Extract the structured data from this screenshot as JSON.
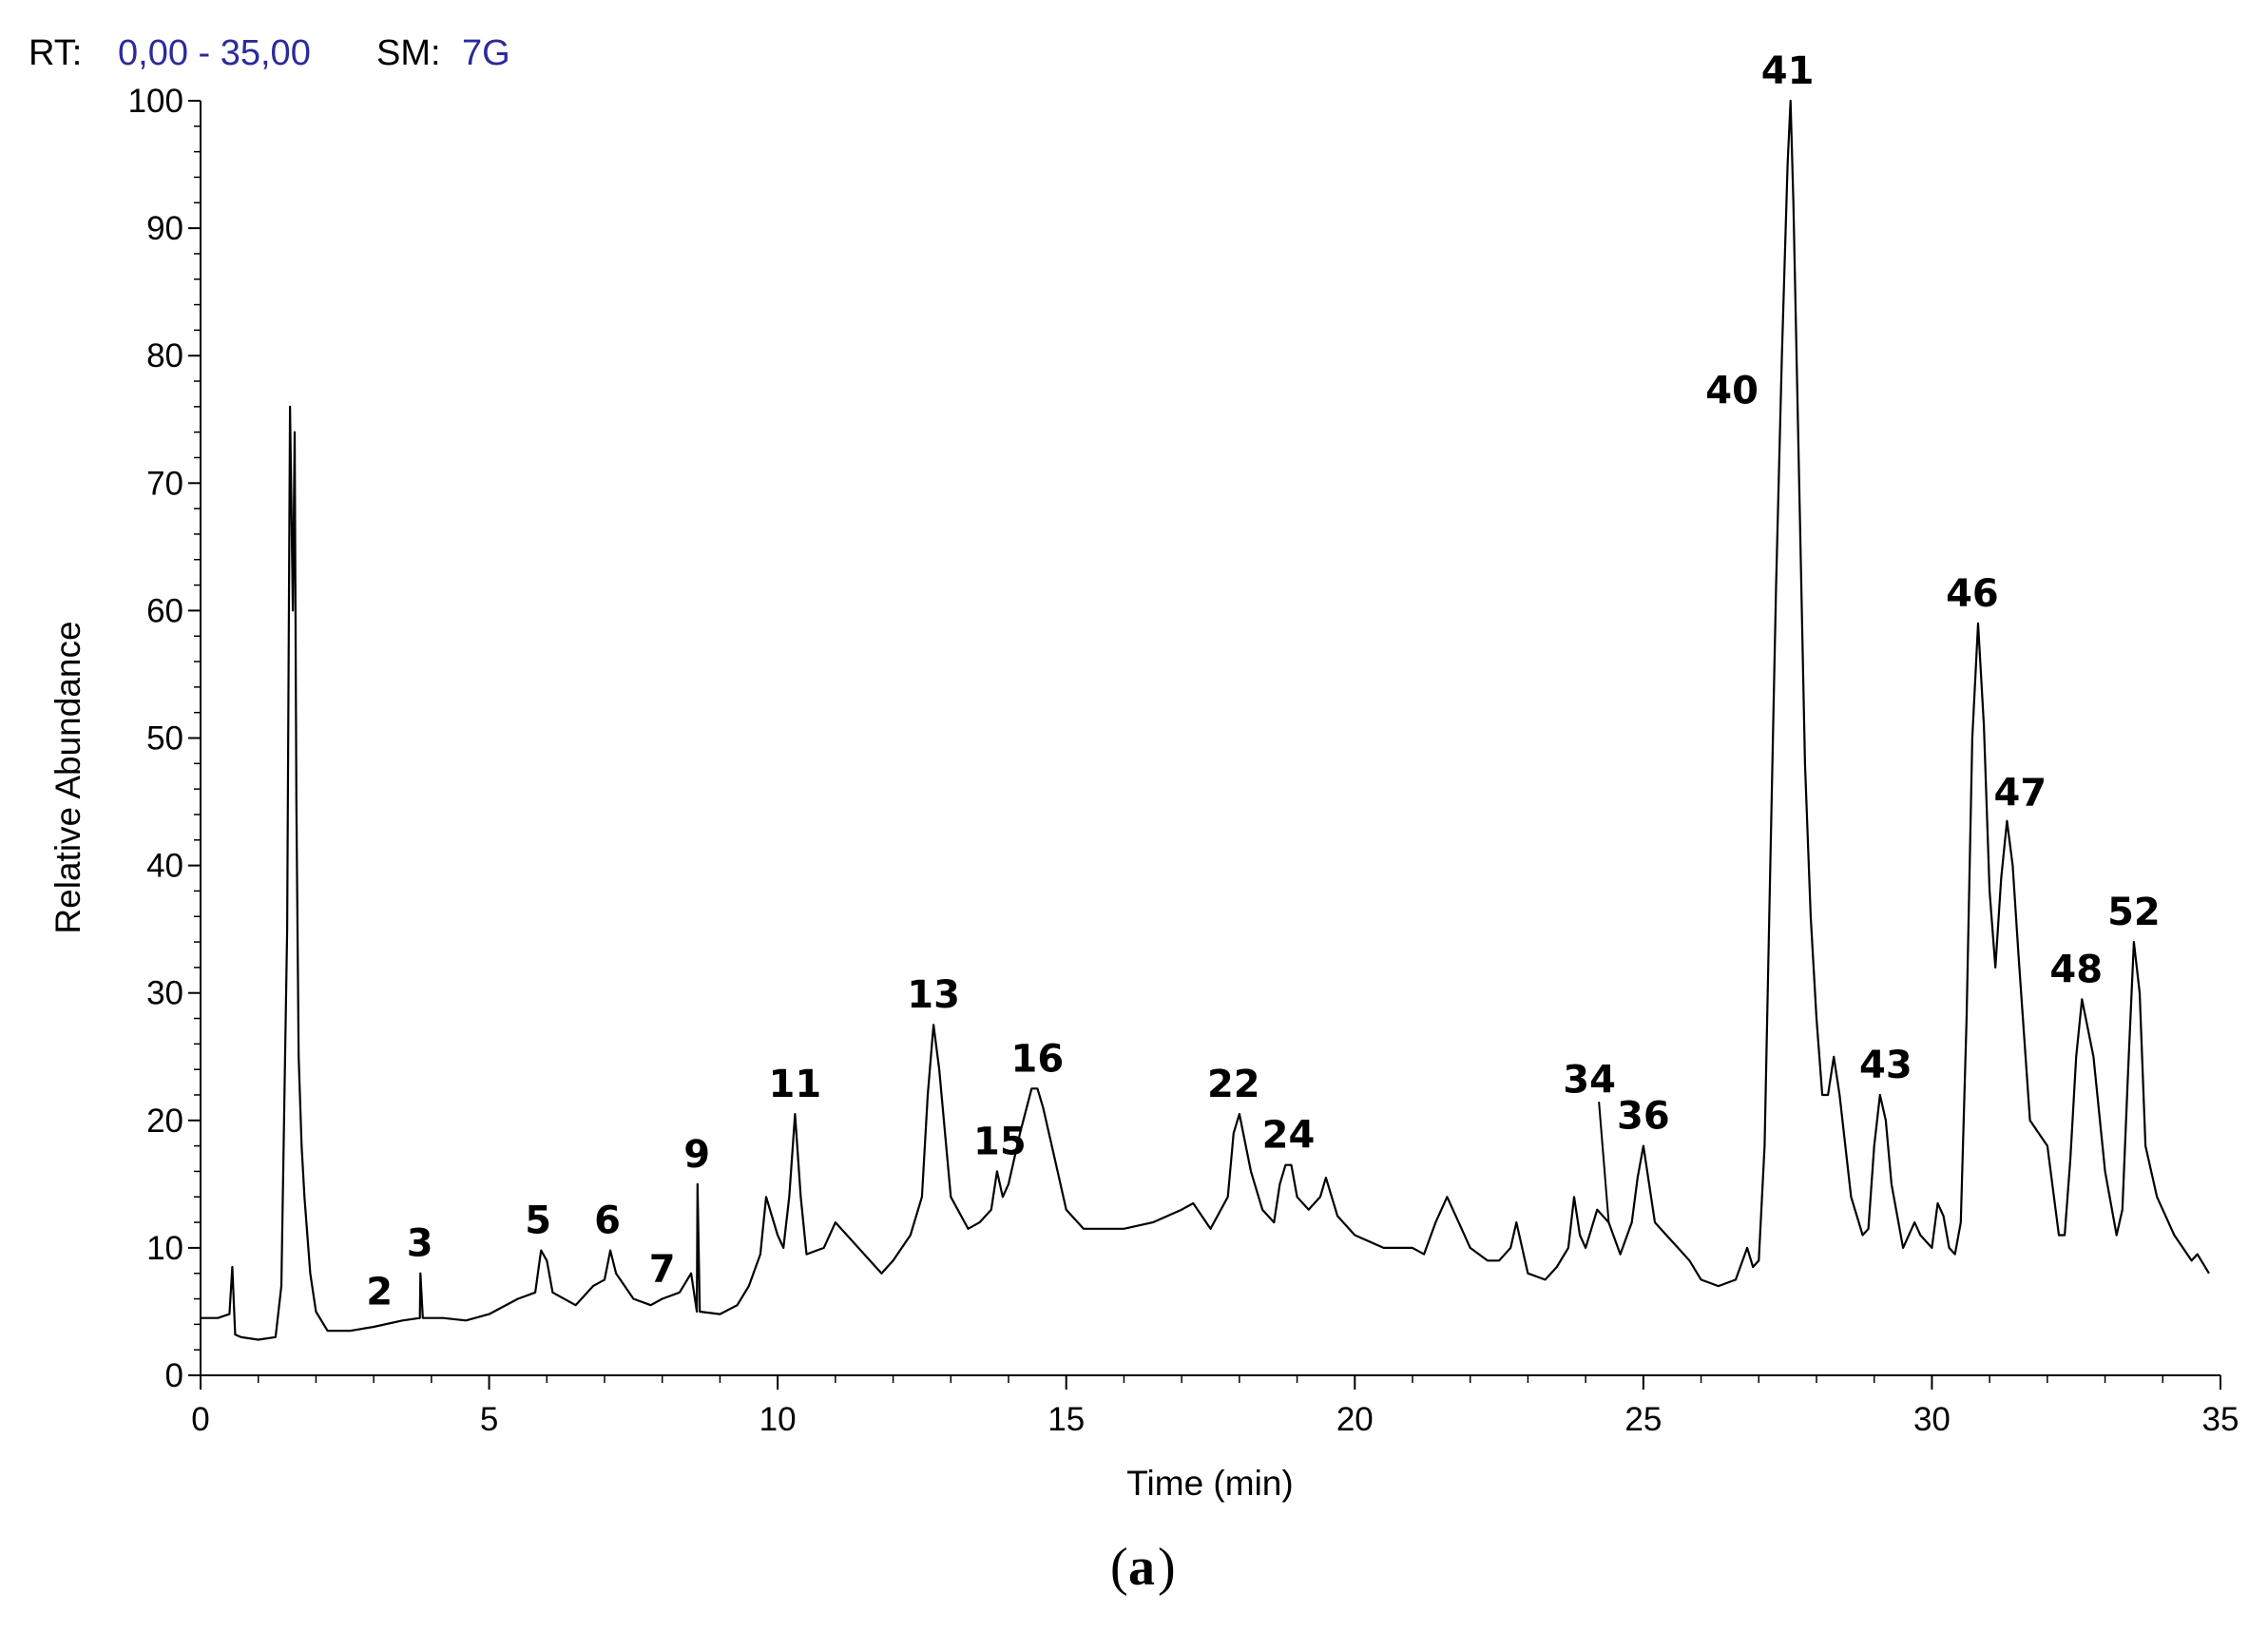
{
  "header": {
    "rt_label": "RT:",
    "rt_range": "0,00 - 35,00",
    "sm_label": "SM:",
    "sm_value": "7G",
    "label_color": "#000000",
    "value_color": "#2b2b9a"
  },
  "caption": {
    "paren_open": "(",
    "letter": "a",
    "paren_close": ")"
  },
  "chart_data": {
    "type": "line",
    "xlabel": "Time (min)",
    "ylabel": "Relative Abundance",
    "xlim": [
      0,
      35
    ],
    "ylim": [
      0,
      100
    ],
    "x_ticks": [
      {
        "value": 0,
        "label": "0"
      },
      {
        "value": 5,
        "label": "5"
      },
      {
        "value": 10,
        "label": "10"
      },
      {
        "value": 15,
        "label": "15"
      },
      {
        "value": 20,
        "label": "20"
      },
      {
        "value": 25,
        "label": "25"
      },
      {
        "value": 30,
        "label": "30"
      },
      {
        "value": 35,
        "label": "35"
      }
    ],
    "y_ticks": [
      {
        "value": 0,
        "label": "0"
      },
      {
        "value": 10,
        "label": "10"
      },
      {
        "value": 20,
        "label": "20"
      },
      {
        "value": 30,
        "label": "30"
      },
      {
        "value": 40,
        "label": "40"
      },
      {
        "value": 50,
        "label": "50"
      },
      {
        "value": 60,
        "label": "60"
      },
      {
        "value": 70,
        "label": "70"
      },
      {
        "value": 80,
        "label": "80"
      },
      {
        "value": 90,
        "label": "90"
      },
      {
        "value": 100,
        "label": "100"
      }
    ],
    "grid": false,
    "line_color": "#000000",
    "series": [
      {
        "x": [
          0.0,
          0.3,
          0.5,
          0.55,
          0.6,
          0.7,
          1.0,
          1.3,
          1.4,
          1.5,
          1.55,
          1.6,
          1.63,
          1.66,
          1.7,
          1.75,
          1.8,
          1.9,
          2.0,
          2.2,
          2.4,
          2.6,
          3.0,
          3.5,
          3.8,
          3.81,
          3.85,
          4.2,
          4.6,
          5.0,
          5.5,
          5.8,
          5.9,
          6.0,
          6.1,
          6.5,
          6.8,
          7.0,
          7.1,
          7.2,
          7.5,
          7.8,
          8.0,
          8.3,
          8.5,
          8.6,
          8.61,
          8.65,
          9.0,
          9.3,
          9.5,
          9.7,
          9.8,
          10.0,
          10.1,
          10.2,
          10.3,
          10.4,
          10.5,
          10.8,
          11.0,
          11.5,
          11.8,
          12.0,
          12.3,
          12.5,
          12.6,
          12.7,
          12.8,
          13.0,
          13.3,
          13.5,
          13.7,
          13.8,
          13.9,
          14.0,
          14.2,
          14.4,
          14.5,
          14.6,
          14.8,
          15.0,
          15.3,
          15.5,
          16.0,
          16.5,
          17.0,
          17.2,
          17.5,
          17.8,
          17.9,
          18.0,
          18.2,
          18.4,
          18.6,
          18.7,
          18.8,
          18.9,
          19.0,
          19.2,
          19.4,
          19.5,
          19.7,
          20.0,
          20.5,
          21.0,
          21.2,
          21.4,
          21.6,
          21.8,
          22.0,
          22.3,
          22.5,
          22.7,
          22.8,
          23.0,
          23.3,
          23.5,
          23.7,
          23.8,
          23.9,
          24.0,
          24.2,
          24.4,
          24.6,
          24.8,
          24.9,
          25.0,
          25.2,
          25.4,
          25.6,
          25.8,
          26.0,
          26.3,
          26.6,
          26.8,
          26.9,
          27.0,
          27.1,
          27.2,
          27.3,
          27.4,
          27.5,
          27.55,
          27.6,
          27.7,
          27.8,
          27.9,
          28.0,
          28.1,
          28.2,
          28.3,
          28.4,
          28.6,
          28.8,
          28.9,
          29.0,
          29.1,
          29.2,
          29.3,
          29.5,
          29.7,
          29.8,
          30.0,
          30.1,
          30.2,
          30.3,
          30.4,
          30.5,
          30.6,
          30.7,
          30.8,
          30.9,
          31.0,
          31.1,
          31.2,
          31.3,
          31.4,
          31.5,
          31.7,
          32.0,
          32.2,
          32.3,
          32.4,
          32.5,
          32.6,
          32.8,
          33.0,
          33.2,
          33.3,
          33.4,
          33.5,
          33.6,
          33.7,
          33.9,
          34.2,
          34.5,
          34.6,
          34.8
        ],
        "y": [
          4.5,
          4.5,
          4.8,
          8.5,
          3.2,
          3.0,
          2.8,
          3.0,
          7.0,
          35,
          76,
          60,
          74,
          45,
          25,
          18,
          14,
          8,
          5,
          3.5,
          3.5,
          3.5,
          3.8,
          4.3,
          4.5,
          8.0,
          4.5,
          4.5,
          4.3,
          4.8,
          6.0,
          6.5,
          9.8,
          9.0,
          6.5,
          5.5,
          7.0,
          7.5,
          9.8,
          8.0,
          6.0,
          5.5,
          6.0,
          6.5,
          8.0,
          5.0,
          15.0,
          5.0,
          4.8,
          5.5,
          7.0,
          9.5,
          14.0,
          11.0,
          10.0,
          14.0,
          20.5,
          14.0,
          9.5,
          10.0,
          12.0,
          9.5,
          8.0,
          9.0,
          11.0,
          14.0,
          22.0,
          27.5,
          24.0,
          14.0,
          11.5,
          12.0,
          13.0,
          16.0,
          14.0,
          15.0,
          19.0,
          22.5,
          22.5,
          21.0,
          17.0,
          13.0,
          11.5,
          11.5,
          11.5,
          12.0,
          13.0,
          13.5,
          11.5,
          14.0,
          19.0,
          20.5,
          16.0,
          13.0,
          12.0,
          15.0,
          16.5,
          16.5,
          14.0,
          13.0,
          14.0,
          15.5,
          12.5,
          11.0,
          10.0,
          10.0,
          9.5,
          12.0,
          14.0,
          12.0,
          10.0,
          9.0,
          9.0,
          10.0,
          12.0,
          8.0,
          7.5,
          8.5,
          10.0,
          14.0,
          11.0,
          10.0,
          13.0,
          12.0,
          9.5,
          12.0,
          15.5,
          18.0,
          12.0,
          11.0,
          10.0,
          9.0,
          7.5,
          7.0,
          7.5,
          10.0,
          8.5,
          9.0,
          18.0,
          40.0,
          62.0,
          80.0,
          95.0,
          100.0,
          92.0,
          70.0,
          48.0,
          36.0,
          28.0,
          22.0,
          22.0,
          25.0,
          22.0,
          14.0,
          11.0,
          11.5,
          18.0,
          22.0,
          20.0,
          15.0,
          10.0,
          12.0,
          11.0,
          10.0,
          13.5,
          12.5,
          10.0,
          9.5,
          12.0,
          28.0,
          50.0,
          59.0,
          51.0,
          38.0,
          32.0,
          39.0,
          43.5,
          40.0,
          33.0,
          20.0,
          18.0,
          11.0,
          11.0,
          17.0,
          25.0,
          29.5,
          25.0,
          16.0,
          11.0,
          13.0,
          24.0,
          34.0,
          30.0,
          18.0,
          14.0,
          11.0,
          9.0,
          9.5,
          8.0
        ]
      }
    ],
    "annotations": [
      {
        "label": "2",
        "x": 3.1,
        "y": 4.2
      },
      {
        "label": "3",
        "x": 3.8,
        "y": 8.0
      },
      {
        "label": "5",
        "x": 5.85,
        "y": 9.8
      },
      {
        "label": "6",
        "x": 7.05,
        "y": 9.8
      },
      {
        "label": "7",
        "x": 8.0,
        "y": 6.0
      },
      {
        "label": "9",
        "x": 8.6,
        "y": 15.0
      },
      {
        "label": "11",
        "x": 10.3,
        "y": 20.5
      },
      {
        "label": "13",
        "x": 12.7,
        "y": 27.5
      },
      {
        "label": "15",
        "x": 13.85,
        "y": 16.0
      },
      {
        "label": "16",
        "x": 14.5,
        "y": 22.5
      },
      {
        "label": "22",
        "x": 17.9,
        "y": 20.5
      },
      {
        "label": "24",
        "x": 18.85,
        "y": 16.5
      },
      {
        "label": "34",
        "x": 24.0,
        "y": 14.0,
        "leader_to": {
          "x": 24.4,
          "y": 12.0
        }
      },
      {
        "label": "36",
        "x": 25.0,
        "y": 18.0
      },
      {
        "label": "40",
        "x": 26.7,
        "y": 77.0
      },
      {
        "label": "41",
        "x": 27.5,
        "y": 100.0
      },
      {
        "label": "43",
        "x": 29.2,
        "y": 22.0
      },
      {
        "label": "46",
        "x": 30.7,
        "y": 59.0
      },
      {
        "label": "47",
        "x": 31.2,
        "y": 43.5
      },
      {
        "label": "48",
        "x": 32.5,
        "y": 29.5
      },
      {
        "label": "52",
        "x": 33.5,
        "y": 34.0
      }
    ]
  }
}
